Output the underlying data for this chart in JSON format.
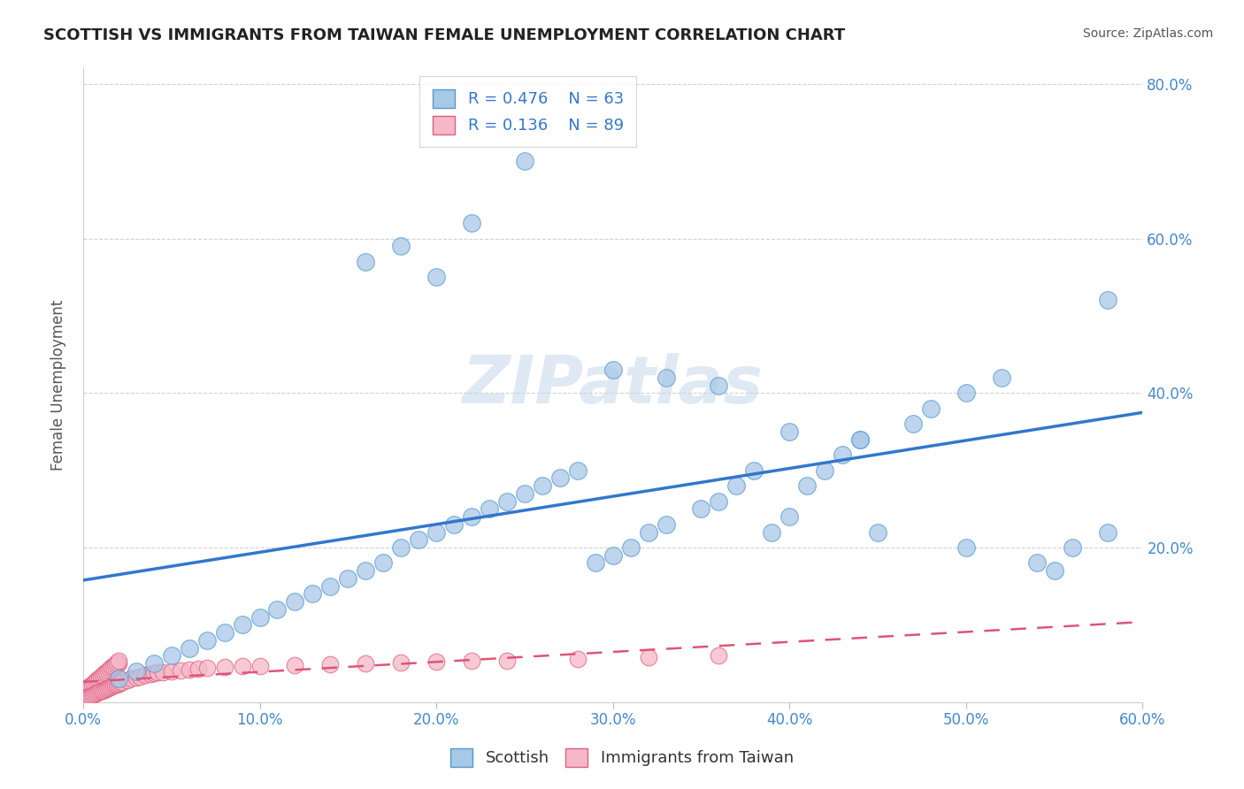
{
  "title": "SCOTTISH VS IMMIGRANTS FROM TAIWAN FEMALE UNEMPLOYMENT CORRELATION CHART",
  "source": "Source: ZipAtlas.com",
  "ylabel": "Female Unemployment",
  "xlim": [
    0,
    0.6
  ],
  "ylim": [
    0,
    0.82
  ],
  "yticks": [
    0.0,
    0.2,
    0.4,
    0.6,
    0.8
  ],
  "ytick_labels": [
    "",
    "20.0%",
    "40.0%",
    "60.0%",
    "80.0%"
  ],
  "xticks": [
    0.0,
    0.1,
    0.2,
    0.3,
    0.4,
    0.5,
    0.6
  ],
  "xtick_labels": [
    "0.0%",
    "10.0%",
    "20.0%",
    "30.0%",
    "40.0%",
    "50.0%",
    "60.0%"
  ],
  "legend_r1": "R = 0.476",
  "legend_n1": "N = 63",
  "legend_r2": "R = 0.136",
  "legend_n2": "N = 89",
  "legend_label1": "Scottish",
  "legend_label2": "Immigrants from Taiwan",
  "color_scottish_face": "#a8c8e8",
  "color_taiwan_face": "#f5b8c8",
  "color_scottish_edge": "#5599cc",
  "color_taiwan_edge": "#e06080",
  "color_scottish_line": "#3377cc",
  "color_taiwan_line": "#dd5577",
  "color_title": "#222222",
  "watermark": "ZIPatlas",
  "background": "#ffffff",
  "scottish_x": [
    0.02,
    0.03,
    0.04,
    0.05,
    0.06,
    0.07,
    0.08,
    0.09,
    0.1,
    0.11,
    0.12,
    0.13,
    0.14,
    0.15,
    0.16,
    0.17,
    0.18,
    0.19,
    0.2,
    0.21,
    0.22,
    0.23,
    0.24,
    0.25,
    0.26,
    0.27,
    0.28,
    0.29,
    0.3,
    0.31,
    0.32,
    0.33,
    0.35,
    0.36,
    0.37,
    0.38,
    0.39,
    0.4,
    0.41,
    0.42,
    0.43,
    0.44,
    0.45,
    0.47,
    0.48,
    0.5,
    0.52,
    0.54,
    0.56,
    0.58,
    0.2,
    0.22,
    0.25,
    0.16,
    0.18,
    0.3,
    0.33,
    0.36,
    0.4,
    0.44,
    0.5,
    0.55,
    0.58
  ],
  "scottish_y": [
    0.03,
    0.04,
    0.05,
    0.06,
    0.07,
    0.08,
    0.09,
    0.1,
    0.11,
    0.12,
    0.13,
    0.14,
    0.15,
    0.16,
    0.17,
    0.18,
    0.2,
    0.21,
    0.22,
    0.23,
    0.24,
    0.25,
    0.26,
    0.27,
    0.28,
    0.29,
    0.3,
    0.18,
    0.19,
    0.2,
    0.22,
    0.23,
    0.25,
    0.26,
    0.28,
    0.3,
    0.22,
    0.24,
    0.28,
    0.3,
    0.32,
    0.34,
    0.22,
    0.36,
    0.38,
    0.4,
    0.42,
    0.18,
    0.2,
    0.22,
    0.55,
    0.62,
    0.7,
    0.57,
    0.59,
    0.43,
    0.42,
    0.41,
    0.35,
    0.34,
    0.2,
    0.17,
    0.52
  ],
  "taiwan_x": [
    0.0,
    0.002,
    0.003,
    0.004,
    0.005,
    0.006,
    0.007,
    0.008,
    0.009,
    0.01,
    0.011,
    0.012,
    0.013,
    0.014,
    0.015,
    0.016,
    0.017,
    0.018,
    0.019,
    0.02,
    0.0,
    0.002,
    0.003,
    0.004,
    0.005,
    0.006,
    0.007,
    0.008,
    0.009,
    0.01,
    0.011,
    0.012,
    0.013,
    0.014,
    0.015,
    0.016,
    0.017,
    0.018,
    0.019,
    0.02,
    0.0,
    0.002,
    0.003,
    0.004,
    0.005,
    0.006,
    0.007,
    0.008,
    0.009,
    0.01,
    0.011,
    0.012,
    0.013,
    0.014,
    0.015,
    0.016,
    0.017,
    0.018,
    0.019,
    0.02,
    0.021,
    0.022,
    0.025,
    0.027,
    0.03,
    0.032,
    0.035,
    0.038,
    0.04,
    0.042,
    0.045,
    0.05,
    0.055,
    0.06,
    0.065,
    0.07,
    0.08,
    0.09,
    0.1,
    0.12,
    0.14,
    0.16,
    0.18,
    0.2,
    0.22,
    0.24,
    0.28,
    0.32,
    0.36
  ],
  "taiwan_y": [
    0.01,
    0.012,
    0.014,
    0.016,
    0.018,
    0.02,
    0.022,
    0.025,
    0.028,
    0.03,
    0.032,
    0.034,
    0.036,
    0.038,
    0.04,
    0.042,
    0.044,
    0.046,
    0.048,
    0.05,
    0.015,
    0.017,
    0.019,
    0.021,
    0.023,
    0.025,
    0.027,
    0.029,
    0.031,
    0.033,
    0.035,
    0.037,
    0.039,
    0.041,
    0.043,
    0.045,
    0.047,
    0.049,
    0.051,
    0.053,
    0.005,
    0.006,
    0.007,
    0.008,
    0.009,
    0.01,
    0.011,
    0.012,
    0.013,
    0.014,
    0.015,
    0.016,
    0.017,
    0.018,
    0.019,
    0.02,
    0.021,
    0.022,
    0.023,
    0.024,
    0.025,
    0.026,
    0.028,
    0.03,
    0.032,
    0.033,
    0.035,
    0.036,
    0.037,
    0.038,
    0.039,
    0.04,
    0.041,
    0.042,
    0.043,
    0.044,
    0.045,
    0.046,
    0.047,
    0.048,
    0.049,
    0.05,
    0.051,
    0.052,
    0.053,
    0.054,
    0.056,
    0.058,
    0.06
  ]
}
